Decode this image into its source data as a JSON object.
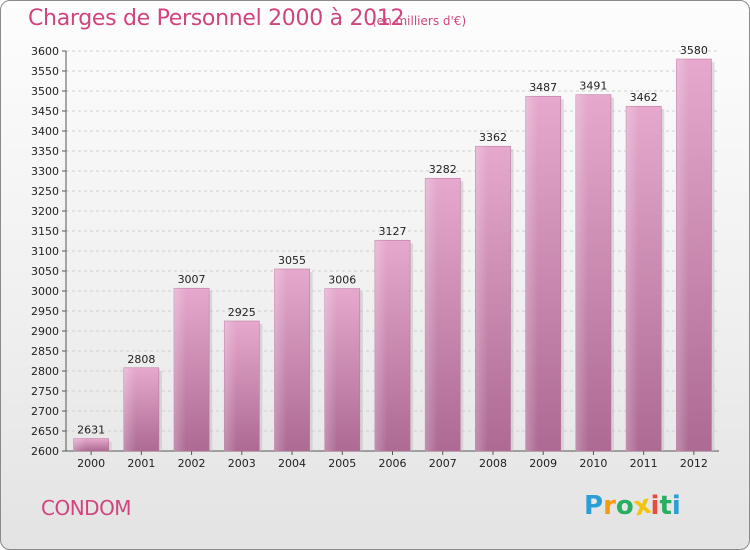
{
  "header": {
    "title": "Charges de Personnel 2000 à 2012",
    "subtitle": "(en milliers d'€)"
  },
  "commune": "CONDOM",
  "logo": {
    "letters": [
      "P",
      "r",
      "o",
      "x",
      "i",
      "t",
      "i"
    ],
    "colors": [
      "#2a9fd6",
      "#f39c12",
      "#27ae60",
      "#f1c40f",
      "#e74c3c",
      "#27ae60",
      "#2a9fd6"
    ]
  },
  "chart_data": {
    "type": "bar",
    "categories": [
      "2000",
      "2001",
      "2002",
      "2003",
      "2004",
      "2005",
      "2006",
      "2007",
      "2008",
      "2009",
      "2010",
      "2011",
      "2012"
    ],
    "values": [
      2631,
      2808,
      3007,
      2925,
      3055,
      3006,
      3127,
      3282,
      3362,
      3487,
      3491,
      3462,
      3580
    ],
    "ylim": [
      2600,
      3600
    ],
    "yticks": [
      2600,
      2650,
      2700,
      2750,
      2800,
      2850,
      2900,
      2950,
      3000,
      3050,
      3100,
      3150,
      3200,
      3250,
      3300,
      3350,
      3400,
      3450,
      3500,
      3550,
      3600
    ],
    "grid": true,
    "bar_color": "#d27fb0"
  }
}
